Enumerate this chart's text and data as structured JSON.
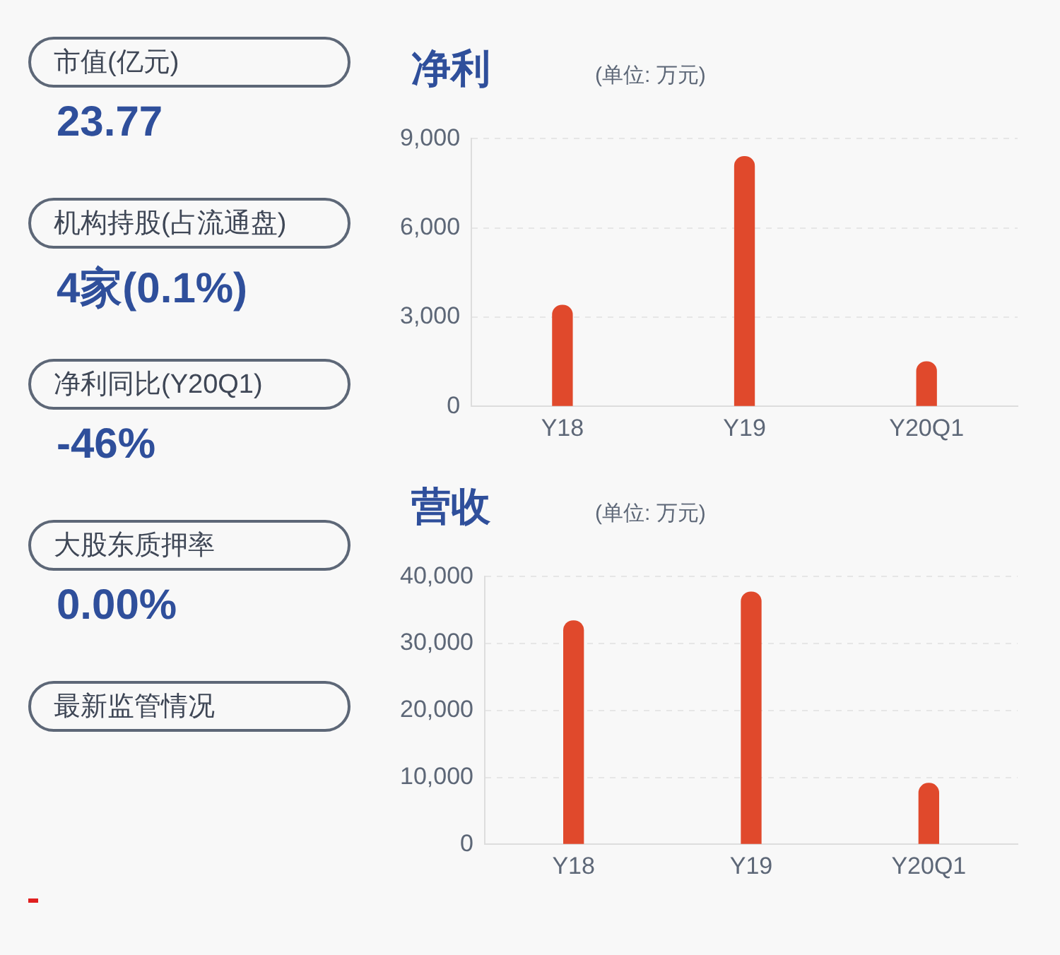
{
  "chart_data": [
    {
      "type": "other",
      "annotations": [
        "市值(亿元)",
        "23.77",
        "机构持股(占流通盘)",
        "4家(0.1%)",
        "净利同比(Y20Q1)",
        "-46%",
        "大股东质押率",
        "0.00%",
        "最新监管情况"
      ]
    },
    {
      "type": "bar",
      "title": "净利",
      "subtitle": "(单位: 万元)",
      "categories": [
        "Y18",
        "Y19",
        "Y20Q1"
      ],
      "values": [
        3400,
        8400,
        1500
      ],
      "color": "#e0492c",
      "ylim": [
        0,
        9000
      ],
      "yticks": [
        {
          "value": 0,
          "label": "0"
        },
        {
          "value": 3000,
          "label": "3,000"
        },
        {
          "value": 6000,
          "label": "6,000"
        },
        {
          "value": 9000,
          "label": "9,000"
        }
      ],
      "grid": "y"
    },
    {
      "type": "bar",
      "title": "营收",
      "subtitle": "(单位: 万元)",
      "categories": [
        "Y18",
        "Y19",
        "Y20Q1"
      ],
      "values": [
        33400,
        37700,
        9100
      ],
      "color": "#e0492c",
      "ylim": [
        0,
        40000
      ],
      "yticks": [
        {
          "value": 0,
          "label": "0"
        },
        {
          "value": 10000,
          "label": "10,000"
        },
        {
          "value": 20000,
          "label": "20,000"
        },
        {
          "value": 30000,
          "label": "30,000"
        },
        {
          "value": 40000,
          "label": "40,000"
        }
      ],
      "grid": "y"
    }
  ]
}
